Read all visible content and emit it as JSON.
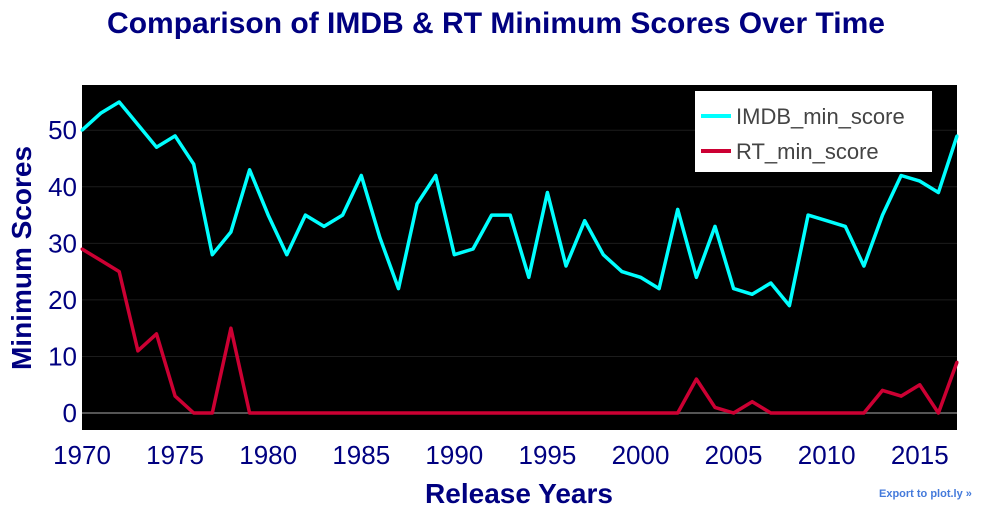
{
  "chart_data": {
    "type": "line",
    "title": "Comparison of IMDB & RT Minimum Scores Over Time",
    "xlabel": "Release Years",
    "ylabel": "Minimum Scores",
    "xlim": [
      1970,
      2017
    ],
    "ylim": [
      -3,
      58
    ],
    "x_ticks": [
      1970,
      1975,
      1980,
      1985,
      1990,
      1995,
      2000,
      2005,
      2010,
      2015
    ],
    "y_ticks": [
      0,
      10,
      20,
      30,
      40,
      50
    ],
    "legend_position": "top-right",
    "x": [
      1970,
      1971,
      1972,
      1973,
      1974,
      1975,
      1976,
      1977,
      1978,
      1979,
      1980,
      1981,
      1982,
      1983,
      1984,
      1985,
      1986,
      1987,
      1988,
      1989,
      1990,
      1991,
      1992,
      1993,
      1994,
      1995,
      1996,
      1997,
      1998,
      1999,
      2000,
      2001,
      2002,
      2003,
      2004,
      2005,
      2006,
      2007,
      2008,
      2009,
      2010,
      2011,
      2012,
      2013,
      2014,
      2015,
      2016,
      2017
    ],
    "series": [
      {
        "name": "IMDB_min_score",
        "color": "#00ffff",
        "values": [
          50,
          53,
          55,
          51,
          47,
          49,
          44,
          28,
          32,
          43,
          35,
          28,
          35,
          33,
          35,
          42,
          31,
          22,
          37,
          42,
          28,
          29,
          35,
          35,
          24,
          39,
          26,
          34,
          28,
          25,
          24,
          22,
          36,
          24,
          33,
          22,
          21,
          23,
          19,
          35,
          34,
          33,
          26,
          35,
          42,
          41,
          39,
          49
        ]
      },
      {
        "name": "RT_min_score",
        "color": "#cc0033",
        "values": [
          29,
          27,
          25,
          11,
          14,
          3,
          0,
          0,
          15,
          0,
          0,
          0,
          0,
          0,
          0,
          0,
          0,
          0,
          0,
          0,
          0,
          0,
          0,
          0,
          0,
          0,
          0,
          0,
          0,
          0,
          0,
          0,
          0,
          6,
          1,
          0,
          2,
          0,
          0,
          0,
          0,
          0,
          0,
          4,
          3,
          5,
          0,
          9
        ]
      }
    ]
  },
  "export_label": "Export to plot.ly »"
}
